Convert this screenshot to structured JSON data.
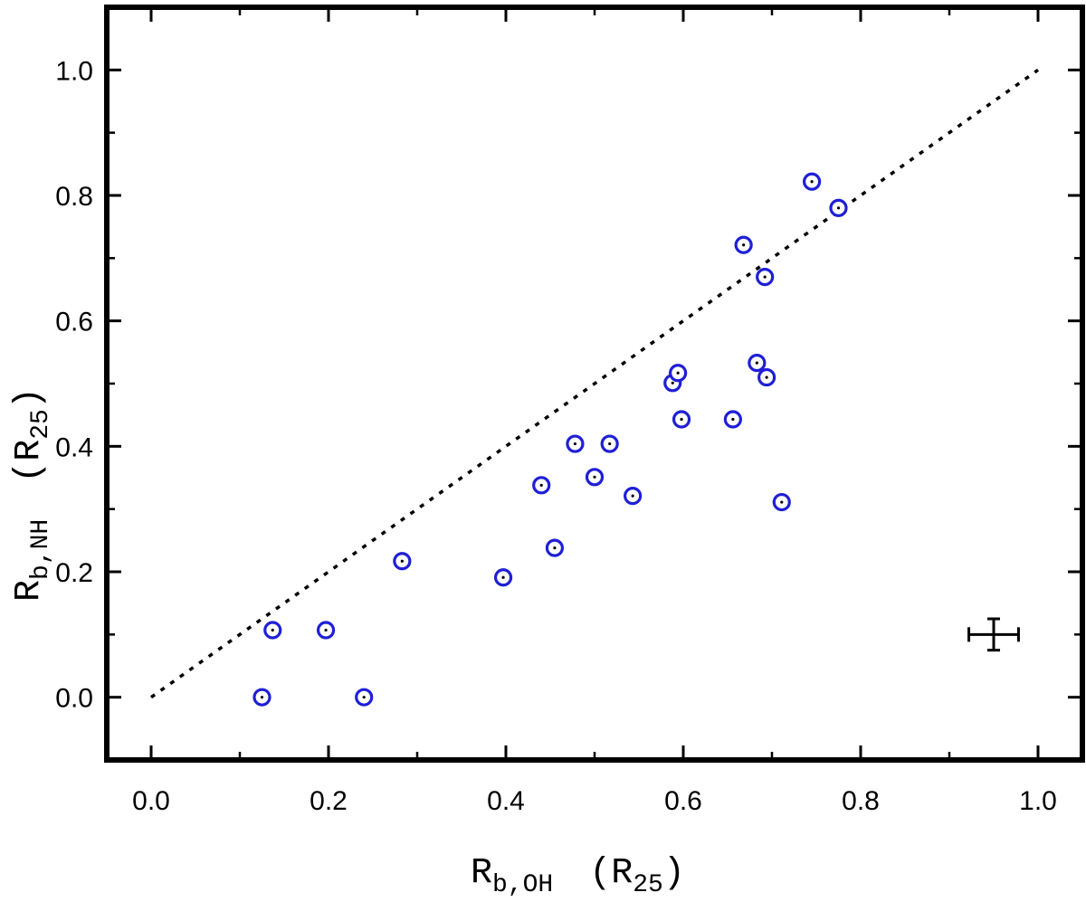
{
  "chart_data": {
    "type": "scatter",
    "xlabel": {
      "main": "R",
      "sub": "b,OH",
      "unit_open": "(R",
      "unit_sub": "25",
      "unit_close": ")"
    },
    "ylabel": {
      "main": "R",
      "sub": "b,NH",
      "unit_open": "(R",
      "unit_sub": "25",
      "unit_close": ")"
    },
    "xlim": [
      -0.05,
      1.05
    ],
    "ylim": [
      -0.1,
      1.1
    ],
    "x_ticks": [
      "0.0",
      "0.2",
      "0.4",
      "0.6",
      "0.8",
      "1.0"
    ],
    "y_ticks": [
      "0.0",
      "0.2",
      "0.4",
      "0.6",
      "0.8",
      "1.0"
    ],
    "grid": false,
    "reference_line": {
      "style": "dotted",
      "x": [
        0.0,
        1.0
      ],
      "y": [
        0.0,
        1.0
      ]
    },
    "error_bar": {
      "x": 0.95,
      "y": 0.1,
      "xerr": 0.028,
      "yerr": 0.025
    },
    "marker_color": "#1f1fd6",
    "points": [
      {
        "x": 0.125,
        "y": 0.0
      },
      {
        "x": 0.137,
        "y": 0.107
      },
      {
        "x": 0.197,
        "y": 0.107
      },
      {
        "x": 0.24,
        "y": 0.0
      },
      {
        "x": 0.283,
        "y": 0.217
      },
      {
        "x": 0.397,
        "y": 0.191
      },
      {
        "x": 0.44,
        "y": 0.338
      },
      {
        "x": 0.455,
        "y": 0.238
      },
      {
        "x": 0.478,
        "y": 0.404
      },
      {
        "x": 0.5,
        "y": 0.351
      },
      {
        "x": 0.517,
        "y": 0.404
      },
      {
        "x": 0.543,
        "y": 0.321
      },
      {
        "x": 0.588,
        "y": 0.501
      },
      {
        "x": 0.594,
        "y": 0.517
      },
      {
        "x": 0.598,
        "y": 0.443
      },
      {
        "x": 0.656,
        "y": 0.443
      },
      {
        "x": 0.668,
        "y": 0.721
      },
      {
        "x": 0.683,
        "y": 0.533
      },
      {
        "x": 0.692,
        "y": 0.67
      },
      {
        "x": 0.694,
        "y": 0.51
      },
      {
        "x": 0.711,
        "y": 0.311
      },
      {
        "x": 0.745,
        "y": 0.822
      },
      {
        "x": 0.775,
        "y": 0.78
      }
    ]
  }
}
